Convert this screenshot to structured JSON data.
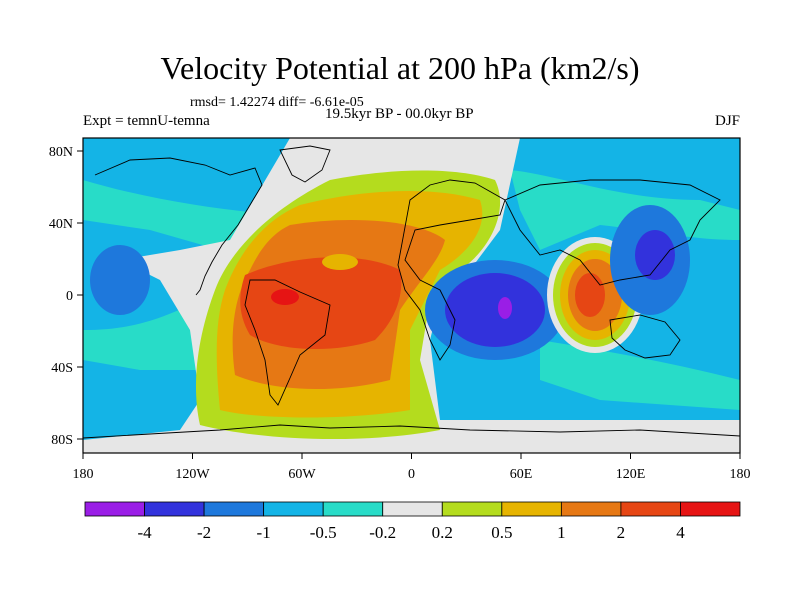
{
  "header": {
    "title": "Velocity Potential at 200 hPa (km2/s)",
    "stats": "rmsd= 1.42274 diff= -6.61e-05",
    "expt": "Expt = temnU-temna",
    "period": "19.5kyr BP - 00.0kyr BP",
    "season": "DJF"
  },
  "axes": {
    "x_ticks": [
      "180",
      "120W",
      "60W",
      "0",
      "60E",
      "120E",
      "180"
    ],
    "y_ticks": [
      "80N",
      "40N",
      "0",
      "40S",
      "80S"
    ]
  },
  "colorbar": {
    "labels": [
      "-4",
      "-2",
      "-1",
      "-0.5",
      "-0.2",
      "0.2",
      "0.5",
      "1",
      "2",
      "4"
    ],
    "colors": [
      "#9a1ee6",
      "#3232dc",
      "#1e78dc",
      "#14b4e6",
      "#28dcc8",
      "#e6e6e6",
      "#b4dc1e",
      "#e6b400",
      "#e67814",
      "#e64614",
      "#e61414"
    ]
  },
  "palette": {
    "c_neg4": "#9a1ee6",
    "c_neg2": "#3232dc",
    "c_neg1": "#1e78dc",
    "c_neg05": "#14b4e6",
    "c_neg02": "#28dcc8",
    "c_zero": "#e6e6e6",
    "c_pos02": "#b4dc1e",
    "c_pos05": "#e6b400",
    "c_pos1": "#e67814",
    "c_pos2": "#e64614",
    "c_pos4": "#e61414"
  }
}
